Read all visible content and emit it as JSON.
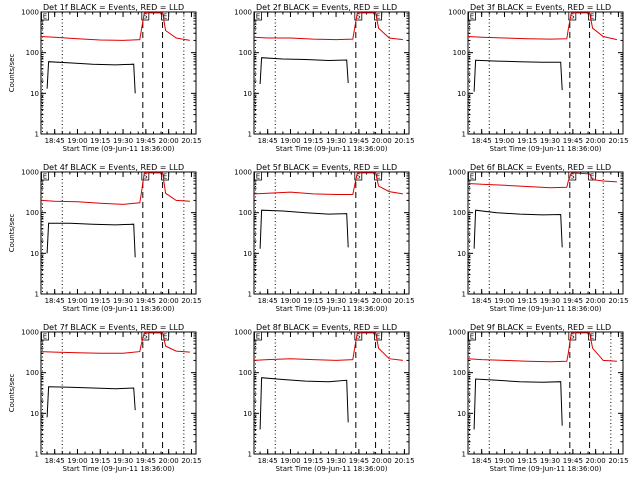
{
  "figure": {
    "background": "#ffffff",
    "colors": {
      "events": "#000000",
      "lld": "#e00000",
      "axes": "#000000"
    }
  },
  "chart_data": [
    {
      "type": "line",
      "title": "Det  1f BLACK = Events, RED = LLD",
      "xlabel": "Start Time (09-Jun-11 18:36:00)",
      "ylabel": "Counts/sec",
      "xlim": [
        "18:36:00",
        "20:18:00"
      ],
      "xticks": [
        "18:45",
        "19:00",
        "19:15",
        "19:30",
        "19:45",
        "20:00",
        "20:15"
      ],
      "ylim": [
        1,
        1000
      ],
      "yscale": "log",
      "yticks": [
        "1",
        "10",
        "100",
        "1000"
      ],
      "markers": [
        {
          "label": "E",
          "time": "18:37",
          "style": "dotted"
        },
        {
          "label": "",
          "time": "18:50",
          "style": "dotted"
        },
        {
          "label": "S",
          "time": "19:43",
          "style": "dashed"
        },
        {
          "label": "E",
          "time": "19:56",
          "style": "dashed"
        },
        {
          "label": "",
          "time": "20:10",
          "style": "dotted"
        }
      ],
      "series": [
        {
          "name": "Events",
          "color": "#000000",
          "x": [
            "18:40",
            "18:41",
            "18:55",
            "19:10",
            "19:25",
            "19:37",
            "19:38"
          ],
          "y": [
            13,
            60,
            56,
            52,
            50,
            52,
            10
          ]
        },
        {
          "name": "LLD",
          "color": "#e00000",
          "x": [
            "18:36",
            "18:45",
            "19:00",
            "19:15",
            "19:30",
            "19:41",
            "19:42",
            "19:44",
            "19:56",
            "19:58",
            "20:05",
            "20:14"
          ],
          "y": [
            250,
            240,
            220,
            205,
            200,
            210,
            350,
            950,
            950,
            350,
            230,
            200
          ]
        }
      ]
    },
    {
      "type": "line",
      "title": "Det  2f BLACK = Events, RED = LLD",
      "xlabel": "Start Time (09-Jun-11 18:36:00)",
      "ylabel": "",
      "xlim": [
        "18:36:00",
        "20:18:00"
      ],
      "xticks": [
        "18:45",
        "19:00",
        "19:15",
        "19:30",
        "19:45",
        "20:00",
        "20:15"
      ],
      "ylim": [
        1,
        1000
      ],
      "yscale": "log",
      "yticks": [
        "1",
        "10",
        "100",
        "1000"
      ],
      "markers": [
        {
          "label": "E",
          "time": "18:37",
          "style": "dotted"
        },
        {
          "label": "",
          "time": "18:50",
          "style": "dotted"
        },
        {
          "label": "S",
          "time": "19:43",
          "style": "dashed"
        },
        {
          "label": "E",
          "time": "19:56",
          "style": "dashed"
        },
        {
          "label": "",
          "time": "20:05",
          "style": "dotted"
        }
      ],
      "series": [
        {
          "name": "Events",
          "color": "#000000",
          "x": [
            "18:40",
            "18:41",
            "18:55",
            "19:10",
            "19:25",
            "19:37",
            "19:38"
          ],
          "y": [
            17,
            75,
            70,
            68,
            64,
            66,
            18
          ]
        },
        {
          "name": "LLD",
          "color": "#e00000",
          "x": [
            "18:36",
            "18:45",
            "19:00",
            "19:15",
            "19:30",
            "19:41",
            "19:42",
            "19:44",
            "19:56",
            "19:58",
            "20:05",
            "20:14"
          ],
          "y": [
            240,
            230,
            230,
            215,
            210,
            215,
            350,
            950,
            950,
            400,
            230,
            210
          ]
        }
      ]
    },
    {
      "type": "line",
      "title": "Det  3f BLACK = Events, RED = LLD",
      "xlabel": "Start Time (09-Jun-11 18:36:00)",
      "ylabel": "",
      "xlim": [
        "18:36:00",
        "20:18:00"
      ],
      "xticks": [
        "18:45",
        "19:00",
        "19:15",
        "19:30",
        "19:45",
        "20:00",
        "20:15"
      ],
      "ylim": [
        1,
        1000
      ],
      "yscale": "log",
      "yticks": [
        "1",
        "10",
        "100",
        "1000"
      ],
      "markers": [
        {
          "label": "E",
          "time": "18:37",
          "style": "dotted"
        },
        {
          "label": "",
          "time": "18:50",
          "style": "dotted"
        },
        {
          "label": "S",
          "time": "19:43",
          "style": "dashed"
        },
        {
          "label": "E",
          "time": "19:56",
          "style": "dashed"
        },
        {
          "label": "",
          "time": "20:05",
          "style": "dotted"
        }
      ],
      "series": [
        {
          "name": "Events",
          "color": "#000000",
          "x": [
            "18:40",
            "18:41",
            "18:55",
            "19:10",
            "19:25",
            "19:37",
            "19:38"
          ],
          "y": [
            11,
            65,
            62,
            60,
            58,
            58,
            12
          ]
        },
        {
          "name": "LLD",
          "color": "#e00000",
          "x": [
            "18:36",
            "18:45",
            "19:00",
            "19:15",
            "19:30",
            "19:41",
            "19:42",
            "19:44",
            "19:56",
            "19:58",
            "20:05",
            "20:14"
          ],
          "y": [
            250,
            240,
            230,
            220,
            215,
            220,
            380,
            950,
            950,
            400,
            250,
            210
          ]
        }
      ]
    },
    {
      "type": "line",
      "title": "Det  4f BLACK = Events, RED = LLD",
      "xlabel": "Start Time (09-Jun-11 18:36:00)",
      "ylabel": "Counts/sec",
      "xlim": [
        "18:36:00",
        "20:18:00"
      ],
      "xticks": [
        "18:45",
        "19:00",
        "19:15",
        "19:30",
        "19:45",
        "20:00",
        "20:15"
      ],
      "ylim": [
        1,
        1000
      ],
      "yscale": "log",
      "yticks": [
        "1",
        "10",
        "100",
        "1000"
      ],
      "markers": [
        {
          "label": "E",
          "time": "18:37",
          "style": "dotted"
        },
        {
          "label": "",
          "time": "18:50",
          "style": "dotted"
        },
        {
          "label": "S",
          "time": "19:43",
          "style": "dashed"
        },
        {
          "label": "E",
          "time": "19:56",
          "style": "dashed"
        },
        {
          "label": "",
          "time": "20:10",
          "style": "dotted"
        }
      ],
      "series": [
        {
          "name": "Events",
          "color": "#000000",
          "x": [
            "18:40",
            "18:41",
            "18:55",
            "19:10",
            "19:25",
            "19:37",
            "19:38"
          ],
          "y": [
            10,
            55,
            55,
            52,
            50,
            52,
            8
          ]
        },
        {
          "name": "LLD",
          "color": "#e00000",
          "x": [
            "18:36",
            "18:45",
            "19:00",
            "19:15",
            "19:30",
            "19:41",
            "19:42",
            "19:44",
            "19:56",
            "19:58",
            "20:05",
            "20:14"
          ],
          "y": [
            200,
            190,
            185,
            170,
            160,
            175,
            300,
            950,
            950,
            300,
            200,
            190
          ]
        }
      ]
    },
    {
      "type": "line",
      "title": "Det  5f BLACK = Events, RED = LLD",
      "xlabel": "Start Time (09-Jun-11 18:36:00)",
      "ylabel": "",
      "xlim": [
        "18:36:00",
        "20:18:00"
      ],
      "xticks": [
        "18:45",
        "19:00",
        "19:15",
        "19:30",
        "19:45",
        "20:00",
        "20:15"
      ],
      "ylim": [
        1,
        1000
      ],
      "yscale": "log",
      "yticks": [
        "1",
        "10",
        "100",
        "1000"
      ],
      "markers": [
        {
          "label": "E",
          "time": "18:37",
          "style": "dotted"
        },
        {
          "label": "",
          "time": "18:50",
          "style": "dotted"
        },
        {
          "label": "S",
          "time": "19:43",
          "style": "dashed"
        },
        {
          "label": "E",
          "time": "19:56",
          "style": "dashed"
        },
        {
          "label": "",
          "time": "20:05",
          "style": "dotted"
        }
      ],
      "series": [
        {
          "name": "Events",
          "color": "#000000",
          "x": [
            "18:40",
            "18:41",
            "18:55",
            "19:10",
            "19:25",
            "19:37",
            "19:38"
          ],
          "y": [
            13,
            115,
            110,
            100,
            92,
            95,
            14
          ]
        },
        {
          "name": "LLD",
          "color": "#e00000",
          "x": [
            "18:36",
            "18:45",
            "19:00",
            "19:15",
            "19:30",
            "19:41",
            "19:42",
            "19:44",
            "19:56",
            "19:58",
            "20:05",
            "20:14"
          ],
          "y": [
            290,
            300,
            320,
            290,
            280,
            280,
            420,
            950,
            950,
            450,
            330,
            290
          ]
        }
      ]
    },
    {
      "type": "line",
      "title": "Det  6f BLACK = Events, RED = LLD",
      "xlabel": "Start Time (09-Jun-11 18:36:00)",
      "ylabel": "",
      "xlim": [
        "18:36:00",
        "20:18:00"
      ],
      "xticks": [
        "18:45",
        "19:00",
        "19:15",
        "19:30",
        "19:45",
        "20:00",
        "20:15"
      ],
      "ylim": [
        1,
        1000
      ],
      "yscale": "log",
      "yticks": [
        "1",
        "10",
        "100",
        "1000"
      ],
      "markers": [
        {
          "label": "E",
          "time": "18:37",
          "style": "dotted"
        },
        {
          "label": "",
          "time": "18:50",
          "style": "dotted"
        },
        {
          "label": "S",
          "time": "19:43",
          "style": "dashed"
        },
        {
          "label": "E",
          "time": "19:56",
          "style": "dashed"
        },
        {
          "label": "",
          "time": "20:05",
          "style": "dotted"
        }
      ],
      "series": [
        {
          "name": "Events",
          "color": "#000000",
          "x": [
            "18:40",
            "18:41",
            "18:55",
            "19:10",
            "19:25",
            "19:37",
            "19:38"
          ],
          "y": [
            13,
            115,
            100,
            92,
            88,
            90,
            14
          ]
        },
        {
          "name": "LLD",
          "color": "#e00000",
          "x": [
            "18:36",
            "18:45",
            "19:00",
            "19:15",
            "19:30",
            "19:41",
            "19:42",
            "19:44",
            "19:56",
            "19:58",
            "20:05",
            "20:14"
          ],
          "y": [
            520,
            500,
            470,
            440,
            410,
            420,
            600,
            950,
            900,
            650,
            600,
            570
          ]
        }
      ]
    },
    {
      "type": "line",
      "title": "Det  7f BLACK = Events, RED = LLD",
      "xlabel": "Start Time (09-Jun-11 18:36:00)",
      "ylabel": "Counts/sec",
      "xlim": [
        "18:36:00",
        "20:18:00"
      ],
      "xticks": [
        "18:45",
        "19:00",
        "19:15",
        "19:30",
        "19:45",
        "20:00",
        "20:15"
      ],
      "ylim": [
        1,
        1000
      ],
      "yscale": "log",
      "yticks": [
        "1",
        "10",
        "100",
        "1000"
      ],
      "markers": [
        {
          "label": "E",
          "time": "18:37",
          "style": "dotted"
        },
        {
          "label": "",
          "time": "18:50",
          "style": "dotted"
        },
        {
          "label": "S",
          "time": "19:43",
          "style": "dashed"
        },
        {
          "label": "E",
          "time": "19:56",
          "style": "dashed"
        },
        {
          "label": "",
          "time": "20:10",
          "style": "dotted"
        }
      ],
      "series": [
        {
          "name": "Events",
          "color": "#000000",
          "x": [
            "18:40",
            "18:41",
            "18:55",
            "19:10",
            "19:25",
            "19:37",
            "19:38"
          ],
          "y": [
            8,
            45,
            44,
            42,
            40,
            42,
            12
          ]
        },
        {
          "name": "LLD",
          "color": "#e00000",
          "x": [
            "18:36",
            "18:45",
            "19:00",
            "19:15",
            "19:30",
            "19:41",
            "19:42",
            "19:44",
            "19:56",
            "19:58",
            "20:05",
            "20:14"
          ],
          "y": [
            330,
            320,
            310,
            300,
            300,
            330,
            500,
            950,
            950,
            450,
            340,
            320
          ]
        }
      ]
    },
    {
      "type": "line",
      "title": "Det  8f BLACK = Events, RED = LLD",
      "xlabel": "Start Time (09-Jun-11 18:36:00)",
      "ylabel": "",
      "xlim": [
        "18:36:00",
        "20:18:00"
      ],
      "xticks": [
        "18:45",
        "19:00",
        "19:15",
        "19:30",
        "19:45",
        "20:00",
        "20:15"
      ],
      "ylim": [
        1,
        1000
      ],
      "yscale": "log",
      "yticks": [
        "1",
        "10",
        "100",
        "1000"
      ],
      "markers": [
        {
          "label": "E",
          "time": "18:37",
          "style": "dotted"
        },
        {
          "label": "",
          "time": "18:50",
          "style": "dotted"
        },
        {
          "label": "S",
          "time": "19:43",
          "style": "dashed"
        },
        {
          "label": "E",
          "time": "19:56",
          "style": "dashed"
        },
        {
          "label": "",
          "time": "20:05",
          "style": "dotted"
        }
      ],
      "series": [
        {
          "name": "Events",
          "color": "#000000",
          "x": [
            "18:40",
            "18:41",
            "18:55",
            "19:10",
            "19:25",
            "19:37",
            "19:38"
          ],
          "y": [
            4,
            75,
            68,
            62,
            60,
            65,
            6
          ]
        },
        {
          "name": "LLD",
          "color": "#e00000",
          "x": [
            "18:36",
            "18:45",
            "19:00",
            "19:15",
            "19:30",
            "19:41",
            "19:42",
            "19:44",
            "19:56",
            "19:58",
            "20:05",
            "20:14"
          ],
          "y": [
            200,
            210,
            220,
            210,
            200,
            210,
            350,
            950,
            950,
            400,
            220,
            200
          ]
        }
      ]
    },
    {
      "type": "line",
      "title": "Det  9f BLACK = Events, RED = LLD",
      "xlabel": "Start Time (09-Jun-11 18:36:00)",
      "ylabel": "",
      "xlim": [
        "18:36:00",
        "20:18:00"
      ],
      "xticks": [
        "18:45",
        "19:00",
        "19:15",
        "19:30",
        "19:45",
        "20:00",
        "20:15"
      ],
      "ylim": [
        1,
        1000
      ],
      "yscale": "log",
      "yticks": [
        "1",
        "10",
        "100",
        "1000"
      ],
      "markers": [
        {
          "label": "E",
          "time": "18:37",
          "style": "dotted"
        },
        {
          "label": "",
          "time": "18:50",
          "style": "dotted"
        },
        {
          "label": "S",
          "time": "19:43",
          "style": "dashed"
        },
        {
          "label": "E",
          "time": "19:56",
          "style": "dashed"
        },
        {
          "label": "",
          "time": "20:10",
          "style": "dotted"
        }
      ],
      "series": [
        {
          "name": "Events",
          "color": "#000000",
          "x": [
            "18:40",
            "18:41",
            "18:55",
            "19:10",
            "19:25",
            "19:37",
            "19:38"
          ],
          "y": [
            4,
            70,
            65,
            60,
            58,
            60,
            5
          ]
        },
        {
          "name": "LLD",
          "color": "#e00000",
          "x": [
            "18:36",
            "18:45",
            "19:00",
            "19:15",
            "19:30",
            "19:41",
            "19:42",
            "19:44",
            "19:56",
            "19:58",
            "20:05",
            "20:14"
          ],
          "y": [
            220,
            210,
            200,
            190,
            185,
            190,
            300,
            950,
            950,
            400,
            200,
            190
          ]
        }
      ]
    }
  ]
}
